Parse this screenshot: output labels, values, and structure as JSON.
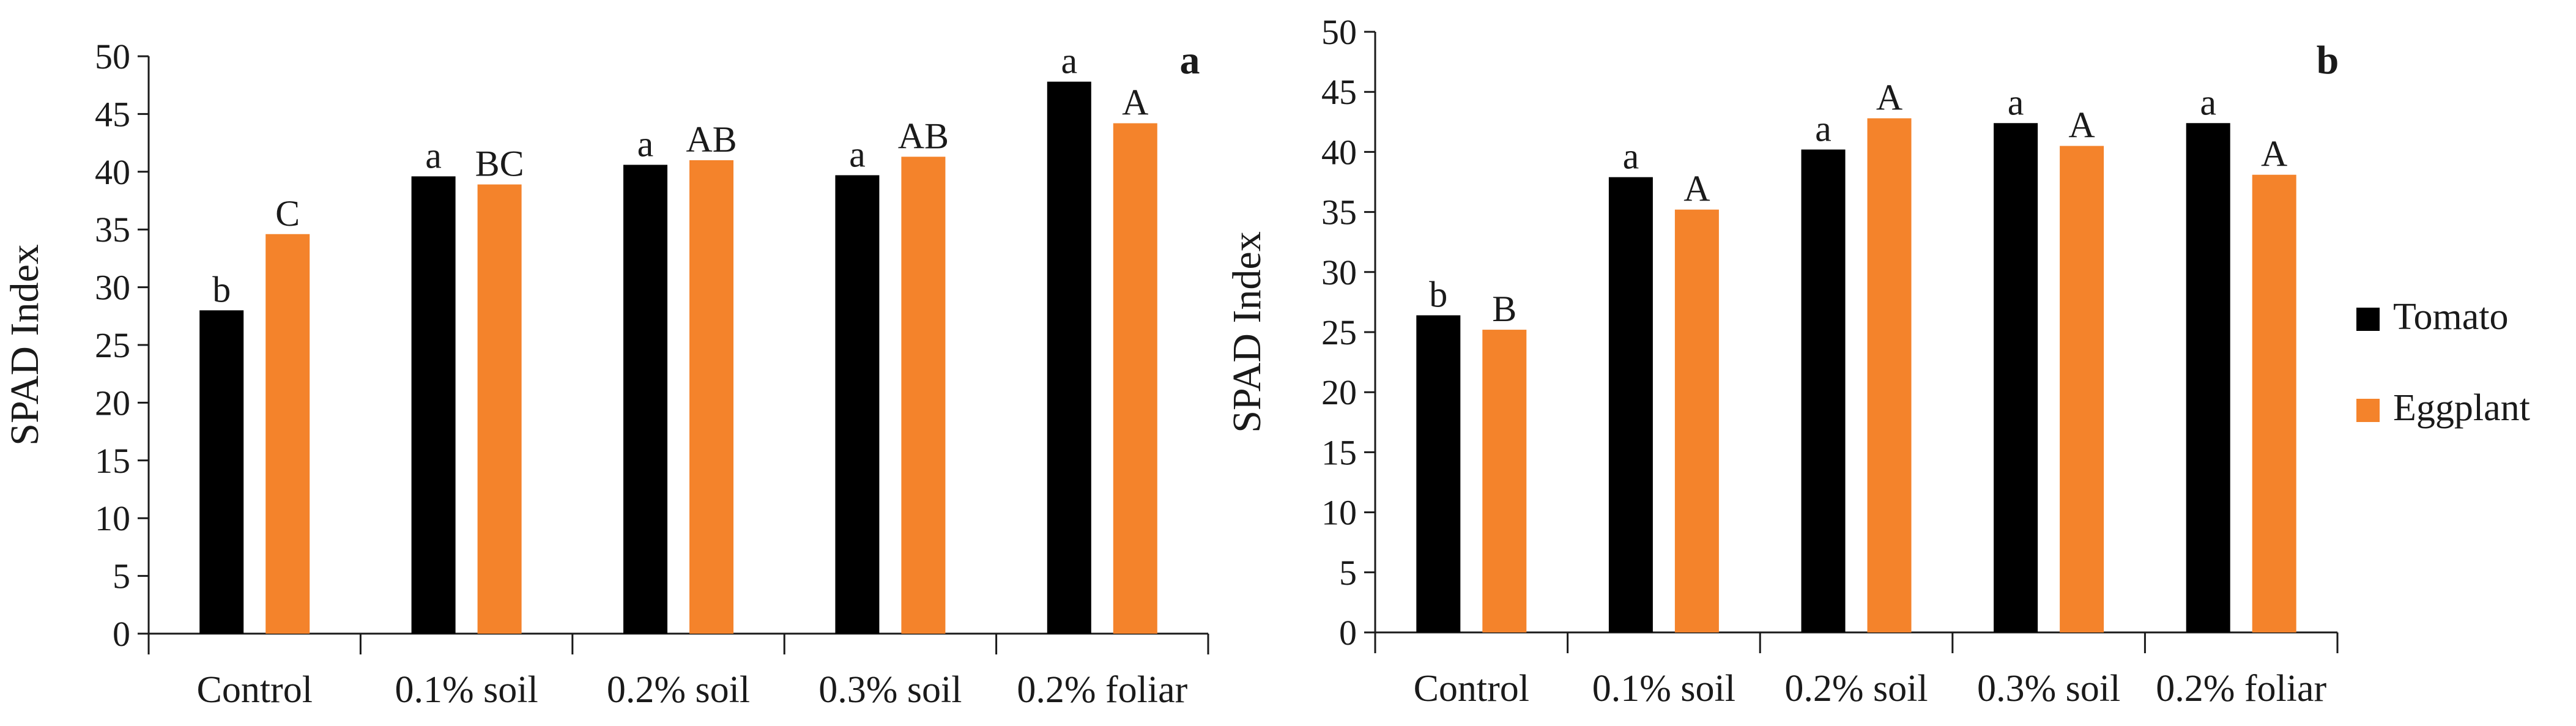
{
  "chart_data": [
    {
      "type": "bar",
      "panel": "a",
      "ylabel": "SPAD Index",
      "ylim": [
        0,
        50
      ],
      "yticks": [
        0,
        5,
        10,
        15,
        20,
        25,
        30,
        35,
        40,
        45,
        50
      ],
      "categories": [
        "Control",
        "0.1% soil",
        "0.2% soil",
        "0.3% soil",
        "0.2% foliar"
      ],
      "series": [
        {
          "name": "Tomato",
          "color": "#000000",
          "values": [
            28.0,
            39.6,
            40.6,
            39.7,
            47.8
          ],
          "letters": [
            "b",
            "a",
            "a",
            "a",
            "a"
          ]
        },
        {
          "name": "Eggplant",
          "color": "#F4832B",
          "values": [
            34.6,
            38.9,
            41.0,
            41.3,
            44.2
          ],
          "letters": [
            "C",
            "BC",
            "AB",
            "AB",
            "A"
          ]
        }
      ]
    },
    {
      "type": "bar",
      "panel": "b",
      "ylabel": "SPAD Index",
      "ylim": [
        0,
        50
      ],
      "yticks": [
        0,
        5,
        10,
        15,
        20,
        25,
        30,
        35,
        40,
        45,
        50
      ],
      "categories": [
        "Control",
        "0.1% soil",
        "0.2% soil",
        "0.3% soil",
        "0.2% foliar"
      ],
      "series": [
        {
          "name": "Tomato",
          "color": "#000000",
          "values": [
            26.4,
            37.9,
            40.2,
            42.4,
            42.4
          ],
          "letters": [
            "b",
            "a",
            "a",
            "a",
            "a"
          ]
        },
        {
          "name": "Eggplant",
          "color": "#F4832B",
          "values": [
            25.2,
            35.2,
            42.8,
            40.5,
            38.1
          ],
          "letters": [
            "B",
            "A",
            "A",
            "A",
            "A"
          ]
        }
      ]
    }
  ],
  "legend": [
    {
      "label": "Tomato",
      "color": "#000000"
    },
    {
      "label": "Eggplant",
      "color": "#F4832B"
    }
  ]
}
